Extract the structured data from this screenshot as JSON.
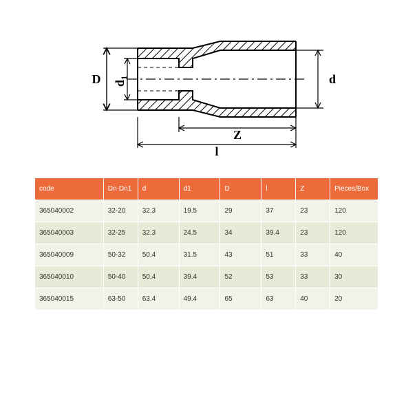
{
  "diagram": {
    "type": "engineering-section",
    "stroke_color": "#000000",
    "hatch_color": "#000000",
    "background_color": "#ffffff",
    "stroke_width_main": 2,
    "stroke_width_dim": 1.2,
    "labels": {
      "D": "D",
      "d1": "d₁",
      "d": "d",
      "Z": "Z",
      "l": "l"
    },
    "label_fontsize": 18,
    "label_font_weight": "bold",
    "label_font_family": "Times New Roman, serif"
  },
  "table": {
    "type": "table",
    "header_bg": "#ed6b3a",
    "header_color": "#ffffff",
    "row_bg_a": "#f1f3e8",
    "row_bg_b": "#e6ead6",
    "border_color": "#ffffff",
    "cell_fontsize": 10,
    "columns": [
      {
        "key": "code",
        "label": "code",
        "width": "20%"
      },
      {
        "key": "dn",
        "label": "Dn-Dn1",
        "width": "10%"
      },
      {
        "key": "d",
        "label": "d",
        "width": "12%"
      },
      {
        "key": "d1",
        "label": "d1",
        "width": "12%"
      },
      {
        "key": "D",
        "label": "D",
        "width": "12%"
      },
      {
        "key": "l",
        "label": "l",
        "width": "10%"
      },
      {
        "key": "Z",
        "label": "Z",
        "width": "10%"
      },
      {
        "key": "pcsbox",
        "label": "Pieces/Box",
        "width": "14%"
      }
    ],
    "rows": [
      {
        "code": "365040002",
        "dn": "32-20",
        "d": "32.3",
        "d1": "19.5",
        "D": "29",
        "l": "37",
        "Z": "23",
        "pcsbox": "120"
      },
      {
        "code": "365040003",
        "dn": "32-25",
        "d": "32.3",
        "d1": "24.5",
        "D": "34",
        "l": "39.4",
        "Z": "23",
        "pcsbox": "120"
      },
      {
        "code": "365040009",
        "dn": "50-32",
        "d": "50.4",
        "d1": "31.5",
        "D": "43",
        "l": "51",
        "Z": "33",
        "pcsbox": "40"
      },
      {
        "code": "365040010",
        "dn": "50-40",
        "d": "50.4",
        "d1": "39.4",
        "D": "52",
        "l": "53",
        "Z": "33",
        "pcsbox": "30"
      },
      {
        "code": "365040015",
        "dn": "63-50",
        "d": "63.4",
        "d1": "49.4",
        "D": "65",
        "l": "63",
        "Z": "40",
        "pcsbox": "20"
      }
    ]
  }
}
